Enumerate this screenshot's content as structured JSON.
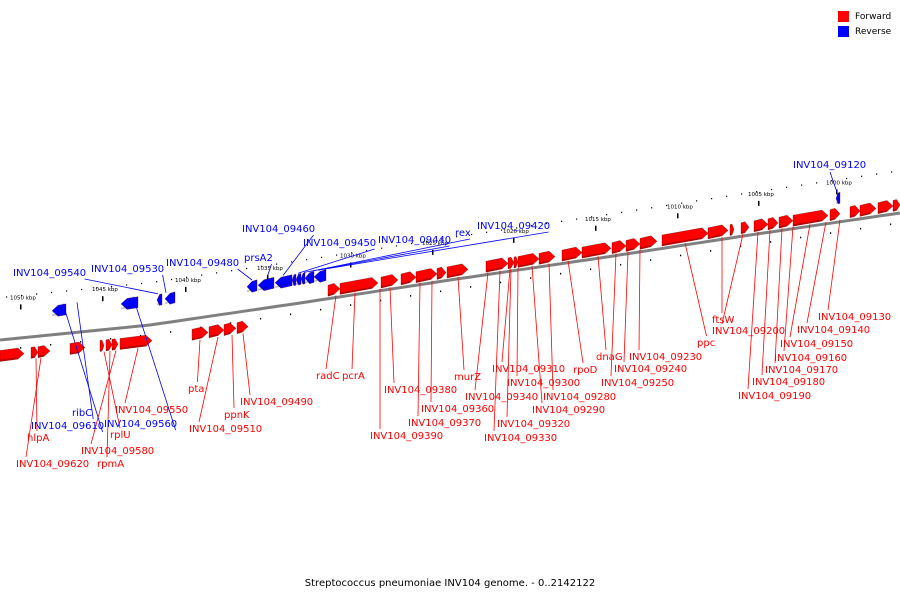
{
  "caption": "Streptococcus pneumoniae INV104 genome. - 0..2142122",
  "legend": [
    {
      "label": "Forward",
      "color": "#ff0000"
    },
    {
      "label": "Reverse",
      "color": "#0000ff"
    }
  ],
  "colors": {
    "forward": "#ff0000",
    "reverse": "#0000ff",
    "backbone": "#808080"
  },
  "scale": {
    "unit": "kbp",
    "labels": [
      "1000 kbp",
      "1005 kbp",
      "1010 kbp",
      "1015 kbp",
      "1020 kbp",
      "1025 kbp",
      "1030 kbp",
      "1035 kbp",
      "1040 kbp",
      "1045 kbp",
      "1050 kbp"
    ]
  },
  "genes": {
    "forward": [
      "INV104_09130",
      "INV104_09140",
      "INV104_09150",
      "INV104_09160",
      "INV104_09170",
      "INV104_09180",
      "INV104_09190",
      "INV104_09200",
      "ftsW",
      "ppc",
      "INV104_09230",
      "INV104_09240",
      "INV104_09250",
      "dnaG",
      "rpoD",
      "INV104_09280",
      "INV104_09290",
      "INV104_09300",
      "INV104_09310",
      "INV104_09320",
      "INV104_09330",
      "INV104_09340",
      "murZ",
      "INV104_09360",
      "INV104_09370",
      "INV104_09380",
      "INV104_09390",
      "pcrA",
      "radC",
      "INV104_09490",
      "ppnK",
      "INV104_09510",
      "pta",
      "INV104_09550",
      "INV104_09580",
      "rpmA",
      "rplU",
      "hlpA",
      "INV104_09620"
    ],
    "reverse": [
      "INV104_09120",
      "INV104_09420",
      "rex",
      "INV104_09440",
      "INV104_09450",
      "INV104_09460",
      "prsA2",
      "INV104_09480",
      "INV104_09530",
      "INV104_09540",
      "INV104_09560",
      "ribC",
      "INV104_09610"
    ]
  }
}
